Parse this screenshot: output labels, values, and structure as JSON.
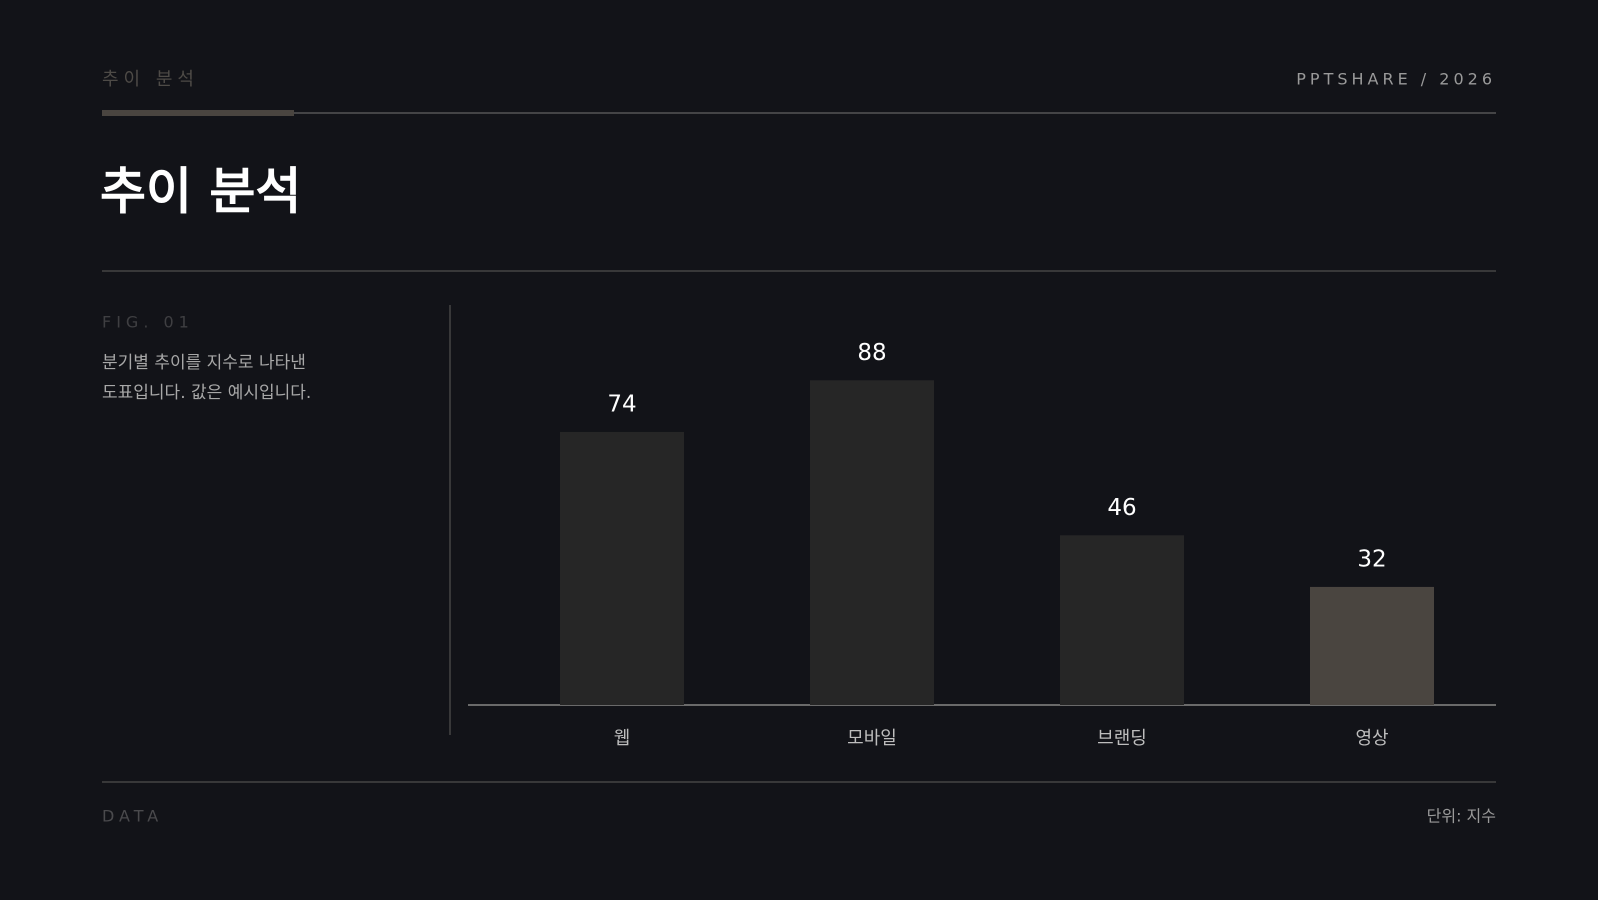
{
  "header": {
    "kicker": "추이 분석",
    "brand": "PPTSHARE / 2026"
  },
  "title": "추이 분석",
  "figure": {
    "label": "FIG. 01",
    "caption": [
      "분기별 추이를 지수로 나타낸",
      "도표입니다. 값은 예시입니다."
    ]
  },
  "chart_data": {
    "type": "bar",
    "categories": [
      "웹",
      "모바일",
      "브랜딩",
      "영상"
    ],
    "values": [
      74,
      88,
      46,
      32
    ],
    "colors": [
      "#262626",
      "#262626",
      "#262626",
      "#4a4540"
    ],
    "ylim": [
      0,
      100
    ]
  },
  "footer": {
    "left": "DATA",
    "right": "단위: 지수"
  }
}
